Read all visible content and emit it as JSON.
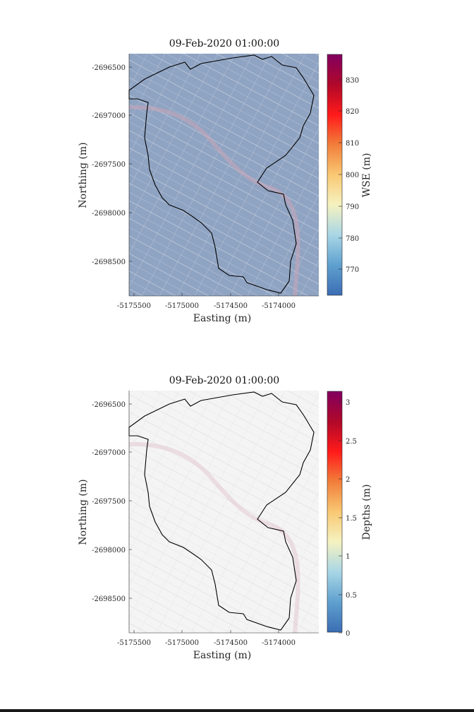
{
  "panels": [
    {
      "id": "wse",
      "title": "09-Feb-2020 01:00:00",
      "xlabel": "Easting (m)",
      "ylabel": "Northing (m)",
      "x_ticks": [
        "-5175500",
        "-5175000",
        "-5174500",
        "-5174000"
      ],
      "y_ticks": [
        "-2696500",
        "-2697000",
        "-2697500",
        "-2698000",
        "-2698500"
      ],
      "colorbar": {
        "label": "WSE (m)",
        "ticks": [
          "770",
          "780",
          "790",
          "800",
          "810",
          "820",
          "830"
        ],
        "colormap": [
          "#3b6db3",
          "#5fa0cf",
          "#a8d6e6",
          "#f5f2c0",
          "#f9c873",
          "#f17e3a",
          "#ff1a1a",
          "#b0082a",
          "#820060"
        ]
      },
      "basemap_tint": "#8fa3c2"
    },
    {
      "id": "depth",
      "title": "09-Feb-2020 01:00:00",
      "xlabel": "Easting (m)",
      "ylabel": "Northing (m)",
      "x_ticks": [
        "-5175500",
        "-5175000",
        "-5174500",
        "-5174000"
      ],
      "y_ticks": [
        "-2696500",
        "-2697000",
        "-2697500",
        "-2698000",
        "-2698500"
      ],
      "colorbar": {
        "label": "Depths (m)",
        "ticks": [
          "0",
          "0.5",
          "1",
          "1.5",
          "2",
          "2.5",
          "3"
        ],
        "colormap": [
          "#3b6db3",
          "#5fa0cf",
          "#a8d6e6",
          "#f5f2c0",
          "#f9c873",
          "#f17e3a",
          "#ff1a1a",
          "#b0082a",
          "#820060"
        ]
      },
      "basemap_tint": "#f4f4f4"
    }
  ]
}
